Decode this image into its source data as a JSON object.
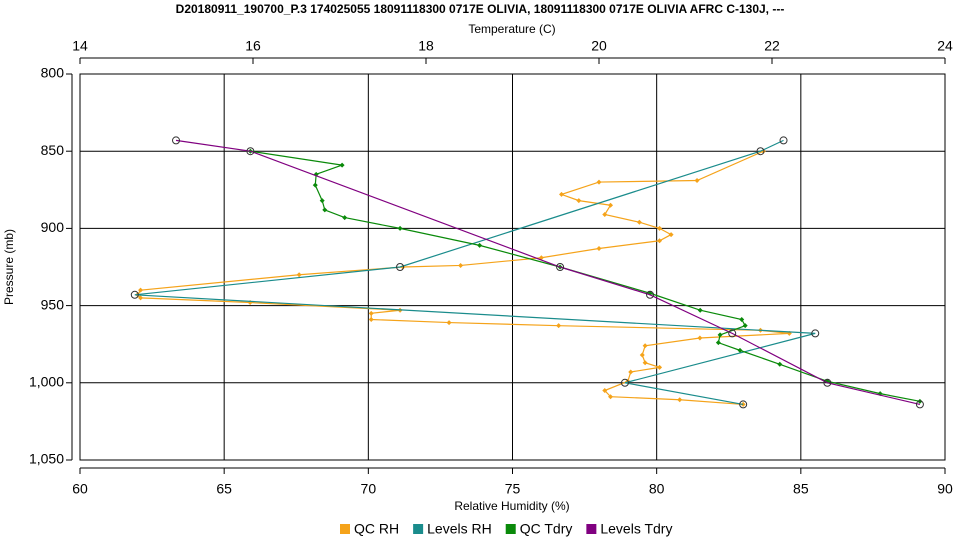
{
  "chart_data": {
    "type": "line",
    "title": "D20180911_190700_P.3 174025055 18091118300 0717E OLIVIA, 18091118300 0717E OLIVIA AFRC C-130J, ---",
    "xlabel": "Relative Humidity (%)",
    "x2label": "Temperature (C)",
    "ylabel": "Pressure (mb)",
    "xlim": [
      60,
      90
    ],
    "xticks": [
      60,
      65,
      70,
      75,
      80,
      85,
      90
    ],
    "x2lim": [
      14,
      24
    ],
    "x2ticks": [
      14,
      16,
      18,
      20,
      22,
      24
    ],
    "ylim": [
      1050,
      800
    ],
    "yticks": [
      800,
      850,
      900,
      950,
      {
        "value": 1000,
        "label": "1,000"
      },
      {
        "value": 1050,
        "label": "1,050"
      }
    ],
    "grid": true,
    "legend": "bottom",
    "series": [
      {
        "name": "QC RH",
        "color": "#f5a31a",
        "axis": "x",
        "marker": "diamond",
        "x": [
          83.7,
          81.4,
          78.0,
          76.7,
          77.3,
          78.4,
          78.2,
          79.4,
          80.1,
          80.5,
          80.1,
          78.0,
          76.0,
          73.2,
          71.2,
          67.6,
          62.1,
          62.0,
          62.1,
          65.9,
          71.1,
          70.1,
          70.1,
          72.8,
          76.6,
          83.6,
          84.6,
          81.5,
          79.6,
          79.5,
          79.6,
          80.1,
          79.1,
          79.0,
          78.2,
          78.4,
          80.8,
          83.0
        ],
        "y": [
          850,
          869,
          870,
          878,
          882,
          885,
          891,
          896,
          900,
          904,
          908,
          913,
          919,
          924,
          925,
          930,
          940,
          943,
          945,
          948,
          953,
          955,
          959,
          961,
          963,
          966,
          968,
          971,
          976,
          982,
          987,
          990,
          993,
          999,
          1005,
          1009,
          1011,
          1014
        ]
      },
      {
        "name": "Levels RH",
        "color": "#1a8c8c",
        "axis": "x",
        "marker": "circle",
        "x": [
          84.4,
          83.6,
          71.1,
          61.9,
          85.5,
          78.9,
          83.0
        ],
        "y": [
          843,
          850,
          925,
          943,
          968,
          1000,
          1014
        ]
      },
      {
        "name": "QC Tdry",
        "color": "#0a8a0a",
        "axis": "x2",
        "marker": "diamond",
        "x": [
          15.97,
          17.03,
          16.73,
          16.72,
          16.8,
          16.83,
          17.06,
          17.7,
          18.62,
          19.55,
          20.59,
          21.17,
          21.65,
          21.69,
          21.4,
          21.38,
          21.63,
          22.09,
          22.64,
          23.25,
          23.71
        ],
        "y": [
          850,
          859,
          865,
          872,
          882,
          888,
          893,
          900,
          911,
          925,
          942,
          953,
          959,
          963,
          969,
          974,
          979,
          988,
          999,
          1007,
          1012
        ]
      },
      {
        "name": "Levels Tdry",
        "color": "#800080",
        "axis": "x2",
        "marker": "circle",
        "x": [
          15.11,
          15.97,
          19.55,
          20.59,
          21.54,
          22.64,
          23.71
        ],
        "y": [
          843,
          850,
          925,
          943,
          968,
          1000,
          1014
        ]
      }
    ]
  }
}
